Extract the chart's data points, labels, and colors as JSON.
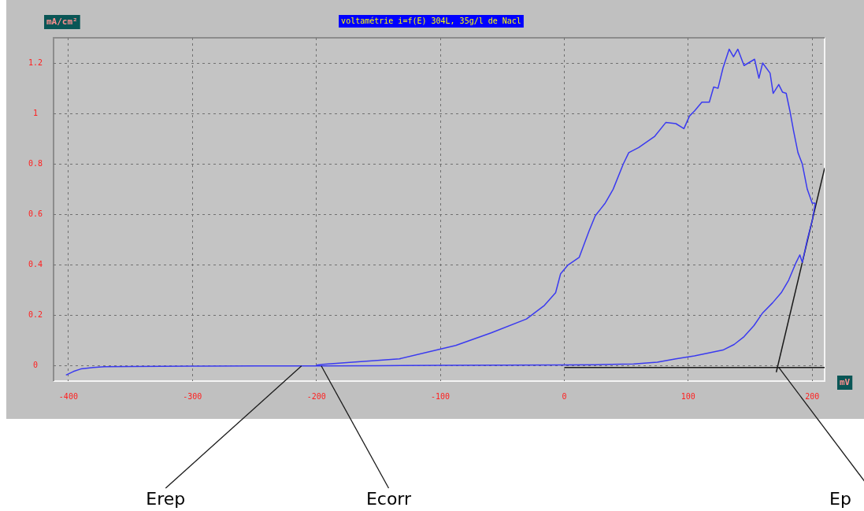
{
  "chart_data": {
    "type": "line",
    "title": "voltamétrie i=f(E) 304L, 35g/l de Nacl",
    "xlabel": "mV",
    "ylabel": "mA/cm²",
    "xlim": [
      -412,
      210
    ],
    "xticks": [
      -400,
      -300,
      -200,
      -100,
      0,
      100,
      200
    ],
    "ylim": [
      -0.06,
      1.3
    ],
    "yticks": [
      0,
      0.2,
      0.4,
      0.6,
      0.8,
      1,
      1.2
    ],
    "grid": true,
    "marker": "none",
    "legend": false,
    "series": [
      {
        "color": "#3a3af0",
        "x": [
          -402,
          -396,
          -390,
          -380,
          -371,
          -350,
          -300,
          -250,
          -200,
          -150,
          -100,
          -50,
          0,
          25,
          56,
          75,
          90,
          105,
          115,
          128,
          137,
          145,
          153,
          160,
          168,
          175,
          181,
          187,
          190,
          192,
          196,
          200,
          202.5
        ],
        "values": [
          -0.036,
          -0.022,
          -0.012,
          -0.006,
          -0.003,
          -0.002,
          -0.001,
          0,
          0,
          0.001,
          0.002,
          0.003,
          0.004,
          0.005,
          0.008,
          0.015,
          0.028,
          0.04,
          0.05,
          0.063,
          0.085,
          0.116,
          0.16,
          0.21,
          0.25,
          0.29,
          0.34,
          0.41,
          0.44,
          0.41,
          0.5,
          0.575,
          0.645
        ]
      },
      {
        "color": "#3a3af0",
        "x": [
          202.5,
          200,
          196,
          192,
          188.5,
          185,
          182,
          179,
          176,
          173,
          168.5,
          166,
          160,
          157,
          153.5,
          145,
          140,
          136.5,
          133,
          128,
          124,
          120.5,
          117,
          111,
          105,
          101,
          96.5,
          90,
          82,
          73,
          60,
          52,
          47.6,
          39.4,
          33,
          25,
          20,
          12,
          3,
          -3,
          -7,
          -16,
          -24,
          -30.5,
          -59,
          -87.6,
          -133,
          -173,
          -195,
          -200
        ],
        "values": [
          0.645,
          0.645,
          0.7,
          0.8,
          0.845,
          0.93,
          1.01,
          1.08,
          1.085,
          1.115,
          1.08,
          1.16,
          1.2,
          1.14,
          1.215,
          1.19,
          1.255,
          1.225,
          1.255,
          1.18,
          1.1,
          1.105,
          1.045,
          1.045,
          1.01,
          0.99,
          0.94,
          0.96,
          0.965,
          0.91,
          0.865,
          0.845,
          0.8,
          0.7,
          0.645,
          0.595,
          0.535,
          0.43,
          0.4,
          0.365,
          0.29,
          0.24,
          0.21,
          0.186,
          0.131,
          0.081,
          0.028,
          0.014,
          0.006,
          0.003
        ]
      },
      {
        "color": "#1a1a1a",
        "x": [
          171,
          210
        ],
        "values": [
          -0.025,
          0.784
        ]
      },
      {
        "color": "#1a1a1a",
        "x": [
          0,
          210
        ],
        "values": [
          -0.006,
          -0.006
        ]
      }
    ],
    "annotations": [
      {
        "text": "Erep",
        "x": -212,
        "y": 0
      },
      {
        "text": "Ecorr",
        "x": -196,
        "y": 0
      },
      {
        "text": "Ep",
        "x": 173,
        "y": -0.006
      }
    ]
  }
}
